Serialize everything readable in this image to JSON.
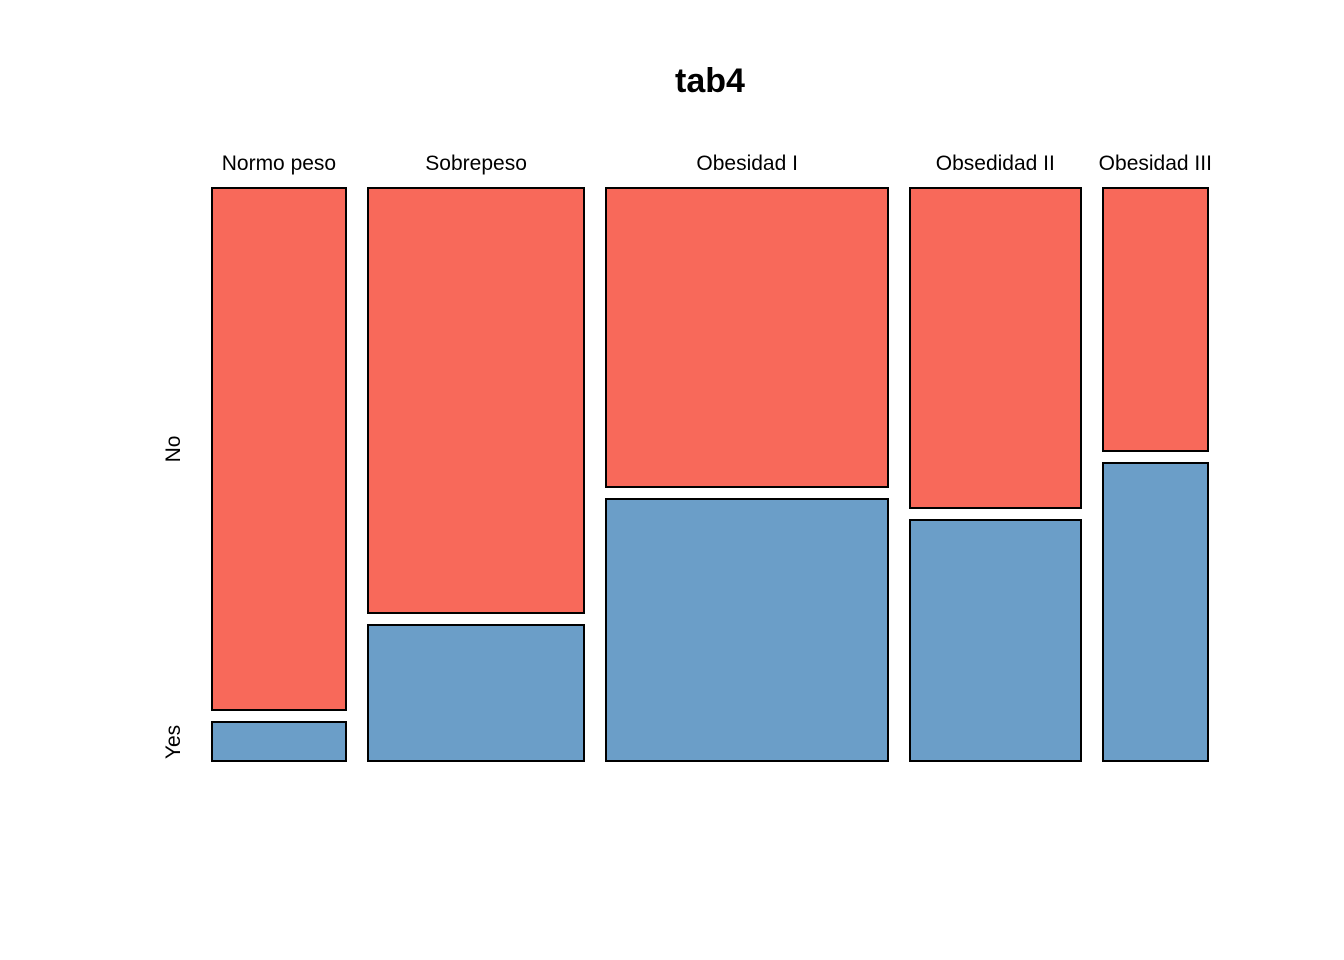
{
  "chart_data": {
    "type": "mosaic",
    "title": "tab4",
    "x_categories": [
      "Normo peso",
      "Sobrepeso",
      "Obesidad I",
      "Obsedidad II",
      "Obesidad III"
    ],
    "y_categories": [
      "No",
      "Yes"
    ],
    "column_width_fractions": [
      0.148,
      0.238,
      0.309,
      0.188,
      0.117
    ],
    "series": [
      {
        "name": "No",
        "row_fractions_by_column": [
          0.928,
          0.755,
          0.532,
          0.57,
          0.469
        ]
      },
      {
        "name": "Yes",
        "row_fractions_by_column": [
          0.072,
          0.245,
          0.468,
          0.43,
          0.531
        ]
      }
    ],
    "colors": {
      "no_fill": "#F8695A",
      "yes_fill": "#6B9EC8",
      "cell_border": "#000000",
      "text": "#000000",
      "background": "#FFFFFF"
    },
    "legend_position": "none",
    "axes": {
      "grid": false,
      "x_label": "",
      "y_label": ""
    }
  }
}
